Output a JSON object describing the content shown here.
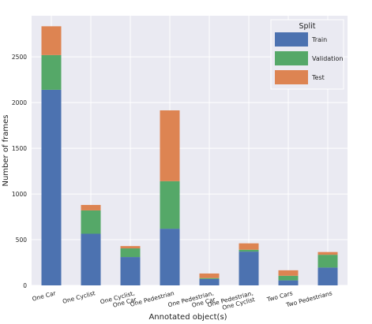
{
  "chart_data": {
    "type": "bar",
    "stacked": true,
    "categories": [
      "One Car",
      "One Cyclist",
      "One Cyclist,\nOne Car",
      "One Pedestrian",
      "One Pedestrian,\nOne Car",
      "One Pedestrian,\nOne Cyclist",
      "Two Cars",
      "Two Pedestrians"
    ],
    "series": [
      {
        "name": "Train",
        "color": "#4c72b0",
        "values": [
          2140,
          565,
          310,
          620,
          70,
          370,
          55,
          195
        ]
      },
      {
        "name": "Validation",
        "color": "#55a868",
        "values": [
          380,
          255,
          95,
          520,
          10,
          20,
          50,
          140
        ]
      },
      {
        "name": "Test",
        "color": "#dd8452",
        "values": [
          315,
          60,
          25,
          775,
          50,
          70,
          60,
          30
        ]
      }
    ],
    "xlabel": "Annotated object(s)",
    "ylabel": "Number of frames",
    "ylim": [
      0,
      2950
    ],
    "yticks": [
      0,
      500,
      1000,
      1500,
      2000,
      2500
    ],
    "grid": true,
    "legend": {
      "title": "Split",
      "placement": "top-right"
    },
    "background": "#eaeaf2"
  }
}
